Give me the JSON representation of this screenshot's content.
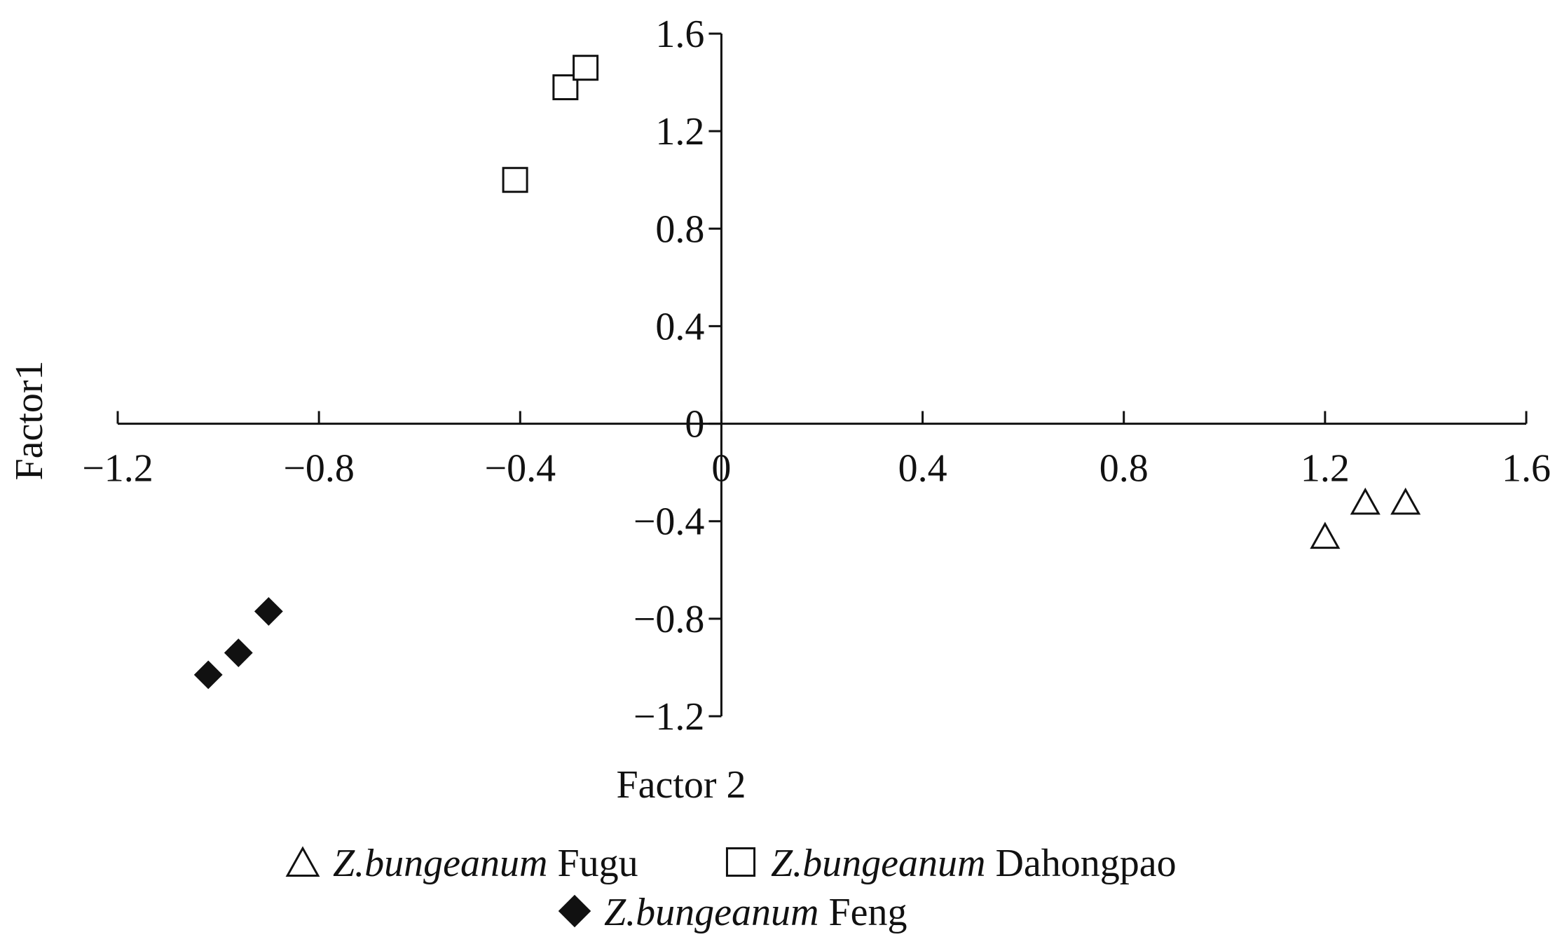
{
  "chart_data": {
    "type": "scatter",
    "xlabel": "Factor 2",
    "ylabel": "Factor1",
    "xlim": [
      -1.2,
      1.6
    ],
    "ylim": [
      -1.2,
      1.6
    ],
    "x_ticks": [
      "−1.2",
      "−0.8",
      "−0.4",
      "0",
      "0.4",
      "0.8",
      "1.2",
      "1.6"
    ],
    "y_ticks": [
      "1.6",
      "1.2",
      "0.8",
      "0.4",
      "0",
      "−0.4",
      "−0.8",
      "−1.2"
    ],
    "grid": false,
    "legend_position": "bottom",
    "series": [
      {
        "name": "Fugu",
        "legend_italic": "Z.bungeanum",
        "legend_plain": "Fugu",
        "marker": "triangle-open",
        "points": [
          [
            1.2,
            -0.46
          ],
          [
            1.28,
            -0.32
          ],
          [
            1.36,
            -0.32
          ]
        ]
      },
      {
        "name": "Dahongpao",
        "legend_italic": "Z.bungeanum",
        "legend_plain": "Dahongpao",
        "marker": "square-open",
        "points": [
          [
            -0.41,
            1.0
          ],
          [
            -0.31,
            1.38
          ],
          [
            -0.27,
            1.46
          ]
        ]
      },
      {
        "name": "Feng",
        "legend_italic": "Z.bungeanum",
        "legend_plain": "Feng",
        "marker": "diamond-filled",
        "points": [
          [
            -1.02,
            -1.03
          ],
          [
            -0.96,
            -0.94
          ],
          [
            -0.9,
            -0.77
          ]
        ]
      }
    ]
  }
}
